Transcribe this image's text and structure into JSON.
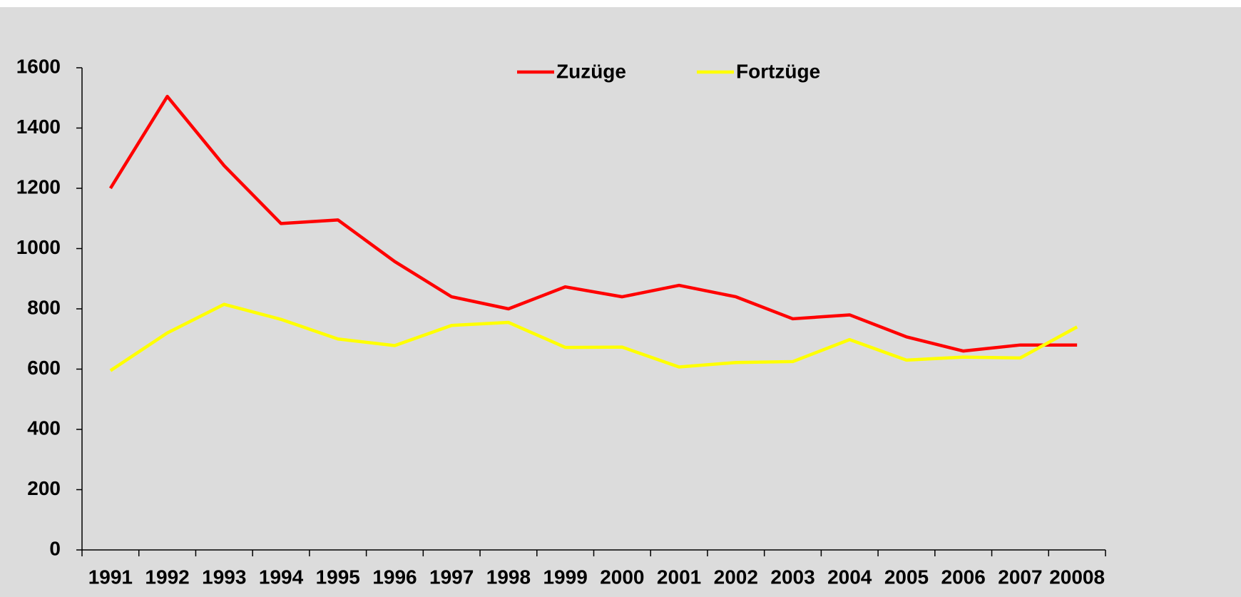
{
  "chart_data": {
    "type": "line",
    "categories": [
      "1991",
      "1992",
      "1993",
      "1994",
      "1995",
      "1996",
      "1997",
      "1998",
      "1999",
      "2000",
      "2001",
      "2002",
      "2003",
      "2004",
      "2005",
      "2006",
      "2007",
      "20008"
    ],
    "series": [
      {
        "name": "Zuzüge",
        "color": "#ff0000",
        "values": [
          1200,
          1505,
          1275,
          1083,
          1095,
          957,
          840,
          800,
          873,
          840,
          878,
          840,
          767,
          780,
          707,
          660,
          680,
          680
        ]
      },
      {
        "name": "Fortzüge",
        "color": "#ffff00",
        "values": [
          595,
          720,
          815,
          765,
          700,
          678,
          745,
          755,
          672,
          673,
          607,
          622,
          625,
          698,
          630,
          640,
          637,
          740
        ]
      }
    ],
    "ylim": [
      0,
      1600
    ],
    "yticks": [
      0,
      200,
      400,
      600,
      800,
      1000,
      1200,
      1400,
      1600
    ],
    "legend": "top"
  }
}
